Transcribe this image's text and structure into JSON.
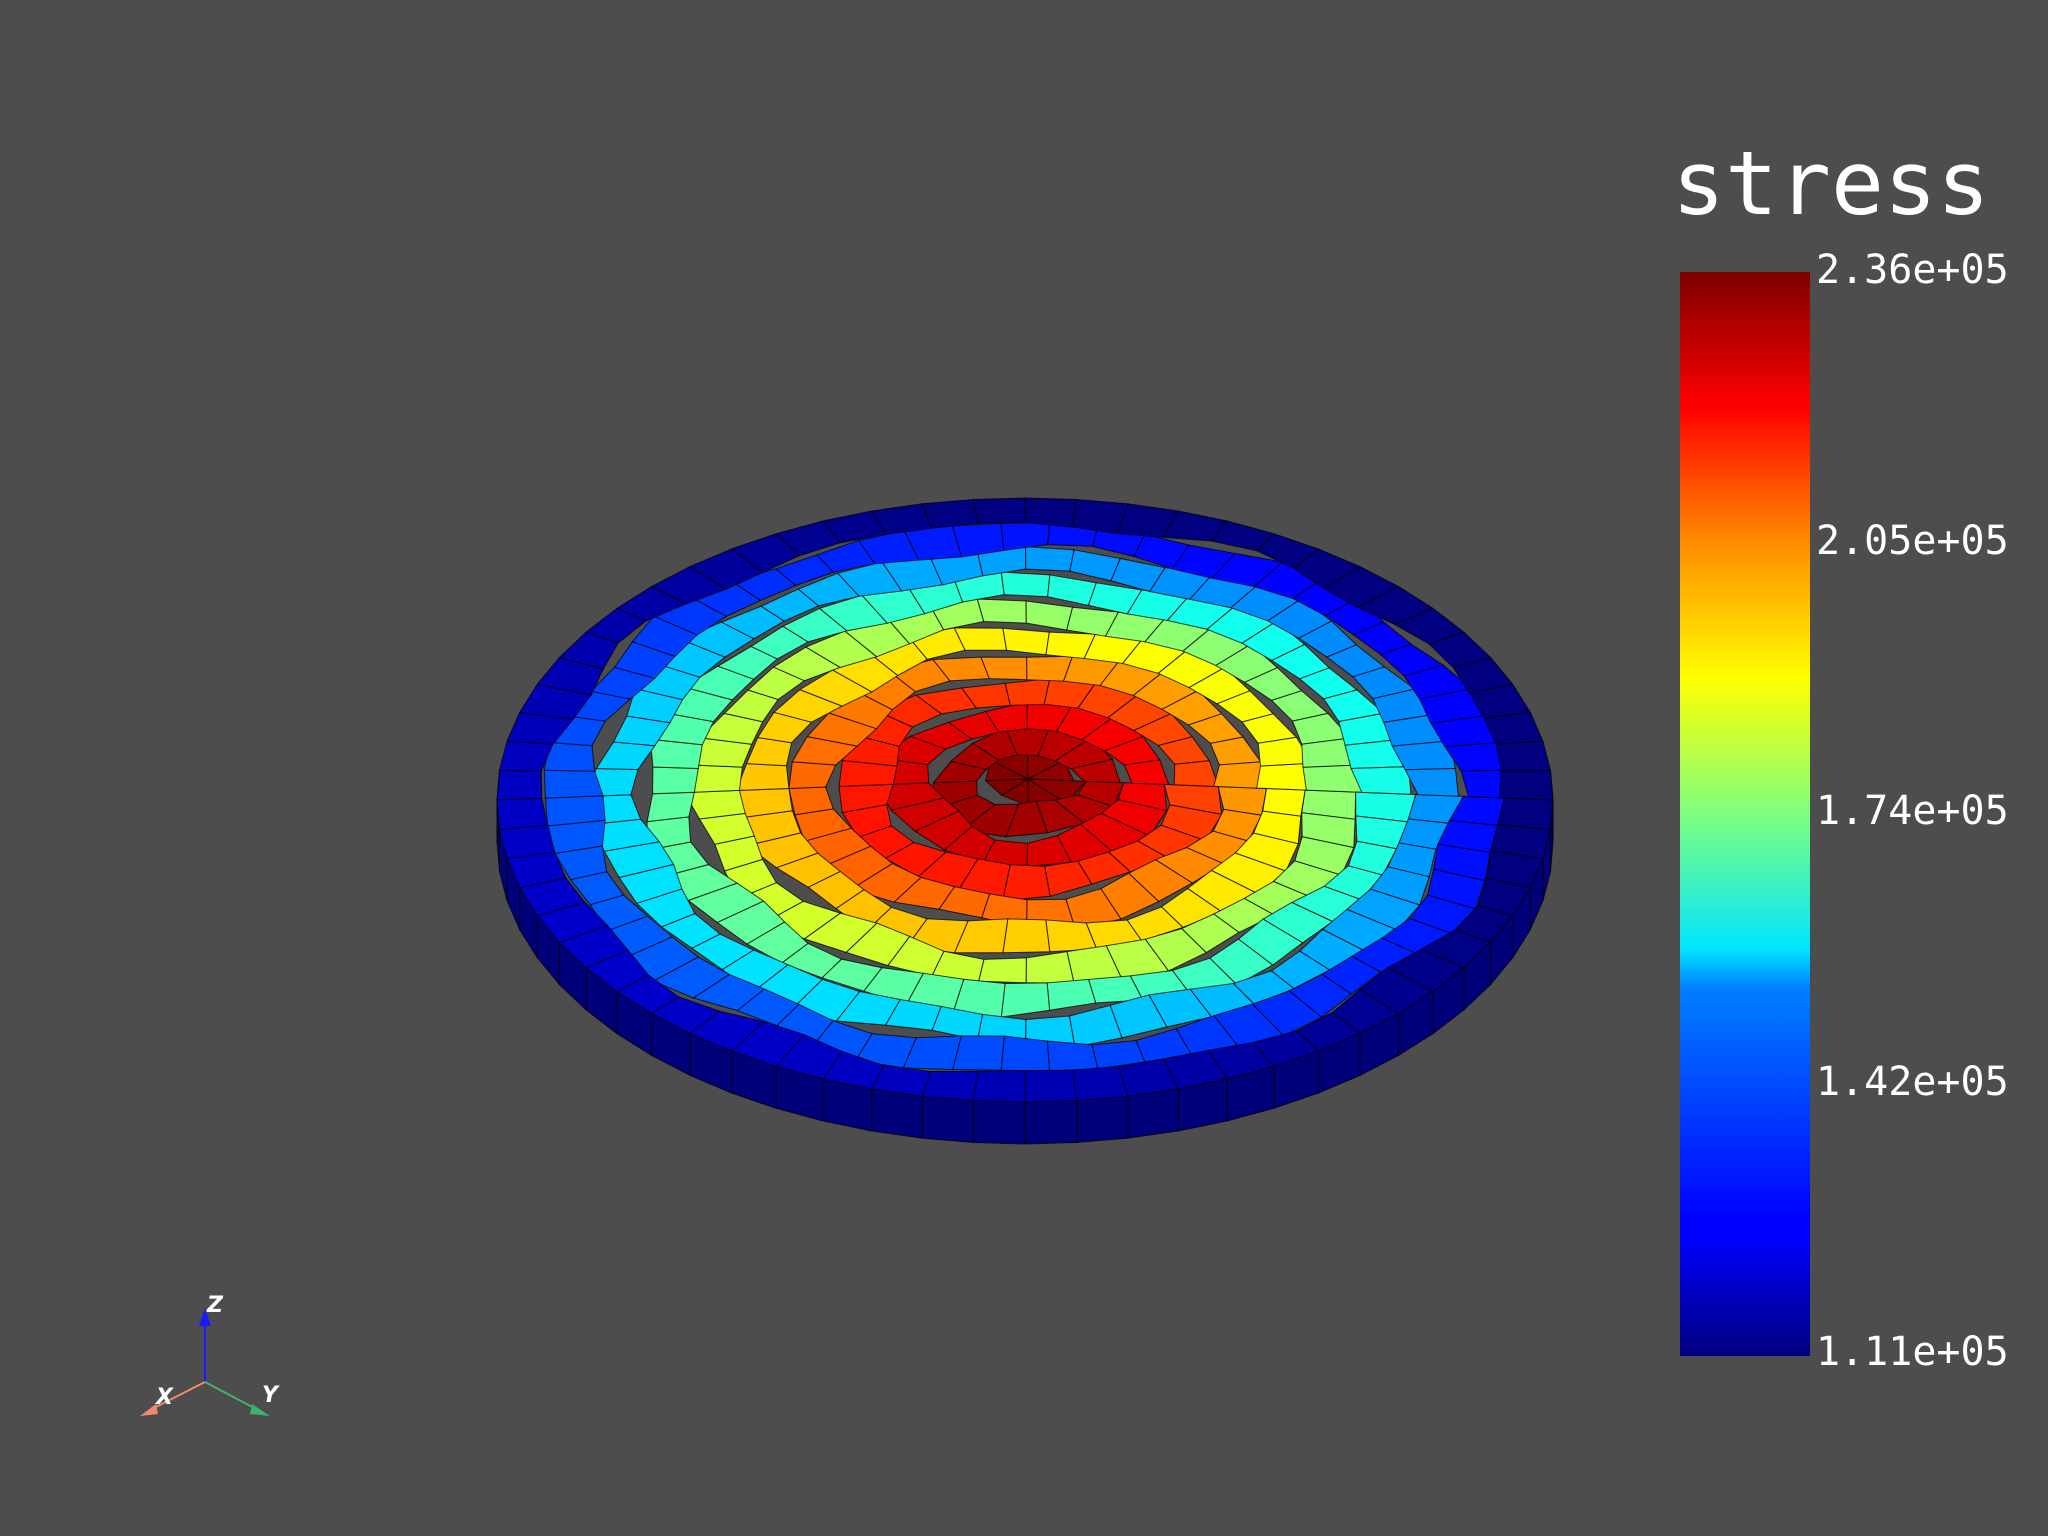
{
  "scene": {
    "background": "#4d4d4d",
    "field_name": "stress",
    "colormap": "jet",
    "range": [
      111000,
      236000
    ],
    "mesh_edge_color": "#000000"
  },
  "legend": {
    "title": "stress",
    "ticks": [
      {
        "value": 236000,
        "label": "2.36e+05"
      },
      {
        "value": 205000,
        "label": "2.05e+05"
      },
      {
        "value": 174000,
        "label": "1.74e+05"
      },
      {
        "value": 142000,
        "label": "1.42e+05"
      },
      {
        "value": 111000,
        "label": "1.11e+05"
      }
    ]
  },
  "axes_widget": {
    "x": {
      "label": "X",
      "color": "#f08a6e"
    },
    "y": {
      "label": "Y",
      "color": "#3cb371"
    },
    "z": {
      "label": "Z",
      "color": "#1a1aff"
    }
  }
}
